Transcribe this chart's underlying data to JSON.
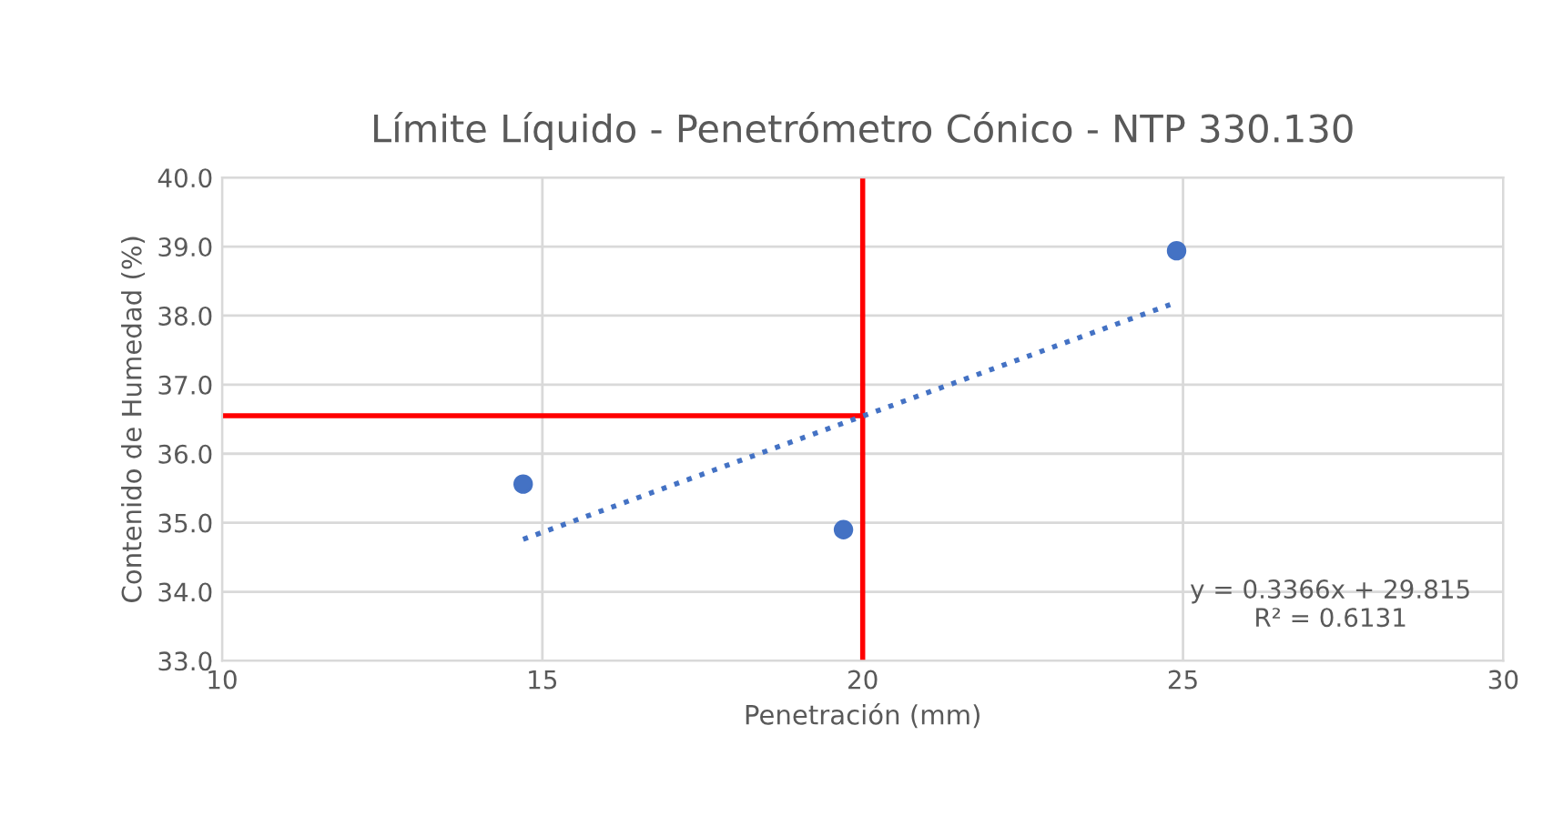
{
  "chart_data": {
    "type": "scatter",
    "title": "Límite Líquido - Penetrómetro Cónico - NTP 330.130",
    "xlabel": "Penetración (mm)",
    "ylabel": "Contenido de Humedad (%)",
    "series": [
      {
        "color": "#4472c4",
        "marker": "circle",
        "x": [
          14.7,
          19.7,
          24.9
        ],
        "values": [
          35.56,
          34.9,
          38.94
        ]
      },
      {
        "type": "line",
        "color": "#4472c4",
        "line_style": "dotted",
        "marker": "none",
        "x": [
          14.7,
          24.8
        ],
        "values": [
          34.76,
          38.16
        ]
      }
    ],
    "ref_lines": [
      {
        "axis": "x",
        "value": 20,
        "color": "#ff0000"
      },
      {
        "axis": "y",
        "value": 36.55,
        "color": "#ff0000"
      }
    ],
    "annotations": [
      "y = 0.3366x + 29.815",
      "R² = 0.6131"
    ],
    "xlim": [
      10,
      30
    ],
    "xticks": [
      10,
      15,
      20,
      25,
      30
    ],
    "ylim": [
      33,
      40
    ],
    "yticks": [
      {
        "value": 33,
        "label": "33.0"
      },
      {
        "value": 34,
        "label": "34.0"
      },
      {
        "value": 35,
        "label": "35.0"
      },
      {
        "value": 36,
        "label": "36.0"
      },
      {
        "value": 37,
        "label": "37.0"
      },
      {
        "value": 38,
        "label": "38.0"
      },
      {
        "value": 39,
        "label": "39.0"
      },
      {
        "value": 40,
        "label": "40.0"
      }
    ],
    "grid": true,
    "legend": false
  }
}
